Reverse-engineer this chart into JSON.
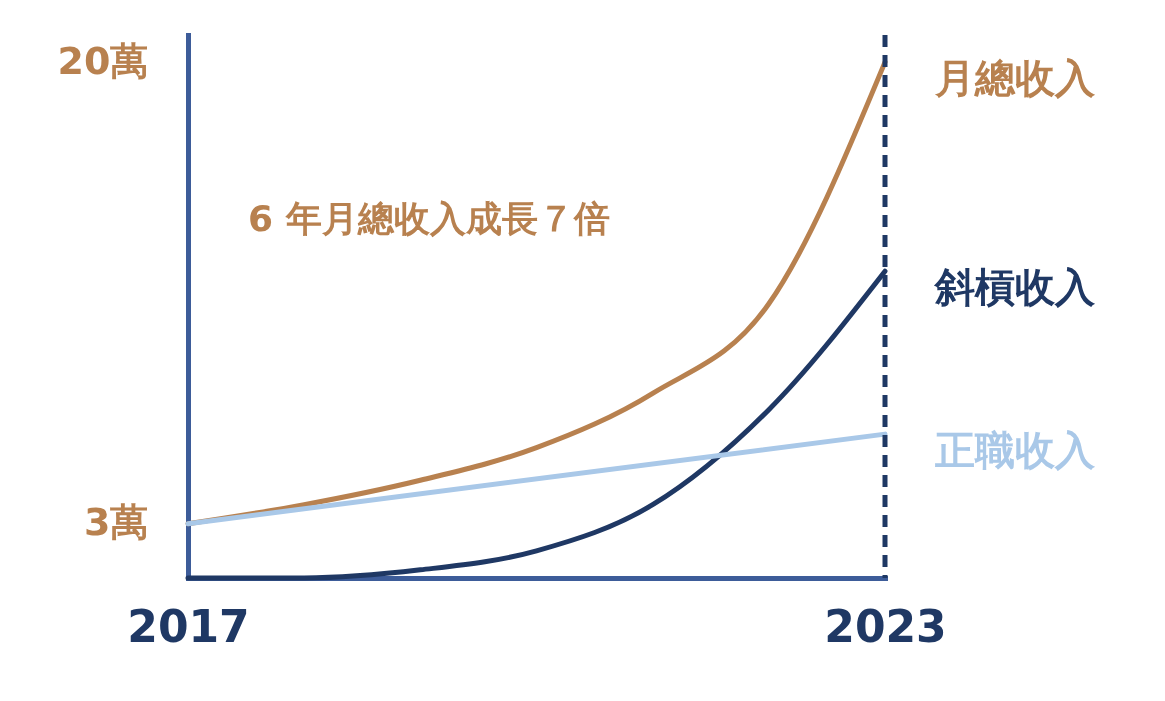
{
  "chart_data": {
    "type": "line",
    "x": [
      2017,
      2018,
      2019,
      2020,
      2021,
      2022,
      2023
    ],
    "xlim": [
      2017,
      2023
    ],
    "xticks": [
      2017,
      2023
    ],
    "ylim": [
      1,
      21
    ],
    "yticks": [
      {
        "value": 3,
        "label": "3萬"
      },
      {
        "value": 20,
        "label": "20萬"
      }
    ],
    "series": [
      {
        "name": "月總收入",
        "color": "#b8814f",
        "values": [
          3,
          3.7,
          4.6,
          5.8,
          7.8,
          11.1,
          20
        ]
      },
      {
        "name": "斜槓收入",
        "color": "#1f3864",
        "values": [
          1,
          1,
          1.3,
          2,
          3.7,
          7.2,
          12.3
        ]
      },
      {
        "name": "正職收入",
        "color": "#a9c8e8",
        "x": [
          2017,
          2023
        ],
        "values": [
          3,
          6.3
        ]
      }
    ],
    "annotations": [
      "6 年月總收入成長７倍"
    ],
    "ref_lines": [
      {
        "axis": "x",
        "value": 2023,
        "color": "#1f3864",
        "line_style": "dashed"
      }
    ],
    "grid": false,
    "legend": false,
    "marker": "none",
    "line_style": "solid"
  }
}
